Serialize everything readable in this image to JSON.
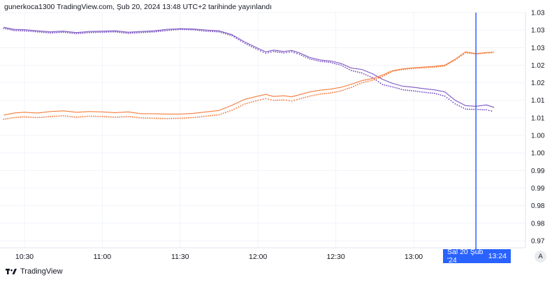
{
  "header": {
    "published_text": "gunerkoca1300 TradingView.com, Şub 20, 2024 13:48 UTC+2 tarihinde yayınlandı"
  },
  "footer": {
    "brand": "TradingView",
    "logo_icon": "tradingview-logo-icon"
  },
  "auto_scale_button": {
    "label": "A"
  },
  "crosshair": {
    "date_label": "Sal 20 Şub '24",
    "time_label": "13:24",
    "time": "13:24",
    "color": "#2962ff"
  },
  "chart_data": {
    "type": "line",
    "title": "",
    "xlabel": "",
    "ylabel": "",
    "x_ticks": [
      "10:30",
      "11:00",
      "11:30",
      "12:00",
      "12:30",
      "13:00"
    ],
    "y_ticks": [
      "1.03",
      "1.03",
      "1.03",
      "1.02",
      "1.02",
      "1.01",
      "1.01",
      "1.00",
      "1.00",
      "0.99",
      "0.99",
      "0.98",
      "0.98",
      "0.97"
    ],
    "y_tick_values": [
      1.035,
      1.03,
      1.025,
      1.02,
      1.015,
      1.01,
      1.005,
      1.0,
      0.995,
      0.99,
      0.985,
      0.98,
      0.975,
      0.97
    ],
    "ylim": [
      0.968,
      1.035
    ],
    "x_range": [
      "10:22",
      "13:31"
    ],
    "grid": true,
    "legend": "none",
    "series": [
      {
        "style": "solid",
        "color": "#7e57c2",
        "points": [
          [
            "10:22",
            1.0308
          ],
          [
            "10:26",
            1.0302
          ],
          [
            "10:30",
            1.0301
          ],
          [
            "10:35",
            1.0298
          ],
          [
            "10:40",
            1.0295
          ],
          [
            "10:45",
            1.0297
          ],
          [
            "10:50",
            1.0293
          ],
          [
            "10:55",
            1.0296
          ],
          [
            "11:00",
            1.0297
          ],
          [
            "11:05",
            1.0298
          ],
          [
            "11:10",
            1.0294
          ],
          [
            "11:15",
            1.0296
          ],
          [
            "11:20",
            1.0298
          ],
          [
            "11:25",
            1.0302
          ],
          [
            "11:30",
            1.0304
          ],
          [
            "11:35",
            1.0303
          ],
          [
            "11:40",
            1.03
          ],
          [
            "11:45",
            1.0298
          ],
          [
            "11:50",
            1.0287
          ],
          [
            "11:55",
            1.0266
          ],
          [
            "12:00",
            1.0248
          ],
          [
            "12:03",
            1.0238
          ],
          [
            "12:06",
            1.0243
          ],
          [
            "12:10",
            1.0239
          ],
          [
            "12:13",
            1.0242
          ],
          [
            "12:16",
            1.0235
          ],
          [
            "12:20",
            1.0222
          ],
          [
            "12:24",
            1.0215
          ],
          [
            "12:28",
            1.0212
          ],
          [
            "12:32",
            1.0205
          ],
          [
            "12:36",
            1.0192
          ],
          [
            "12:40",
            1.0188
          ],
          [
            "12:44",
            1.0176
          ],
          [
            "12:48",
            1.016
          ],
          [
            "12:52",
            1.0148
          ],
          [
            "12:56",
            1.014
          ],
          [
            "13:00",
            1.0137
          ],
          [
            "13:04",
            1.0133
          ],
          [
            "13:08",
            1.013
          ],
          [
            "13:12",
            1.0124
          ],
          [
            "13:16",
            1.01
          ],
          [
            "13:20",
            1.0085
          ],
          [
            "13:24",
            1.0083
          ],
          [
            "13:28",
            1.0087
          ],
          [
            "13:31",
            1.008
          ]
        ]
      },
      {
        "style": "dotted",
        "color": "#7e57c2",
        "points": [
          [
            "10:22",
            1.0305
          ],
          [
            "10:26",
            1.0299
          ],
          [
            "10:30",
            1.0298
          ],
          [
            "10:35",
            1.0295
          ],
          [
            "10:40",
            1.0292
          ],
          [
            "10:45",
            1.0294
          ],
          [
            "10:50",
            1.029
          ],
          [
            "10:55",
            1.0293
          ],
          [
            "11:00",
            1.0294
          ],
          [
            "11:05",
            1.0295
          ],
          [
            "11:10",
            1.0291
          ],
          [
            "11:15",
            1.0293
          ],
          [
            "11:20",
            1.0295
          ],
          [
            "11:25",
            1.0299
          ],
          [
            "11:30",
            1.0302
          ],
          [
            "11:35",
            1.0301
          ],
          [
            "11:40",
            1.0297
          ],
          [
            "11:45",
            1.0295
          ],
          [
            "11:50",
            1.0284
          ],
          [
            "11:55",
            1.0262
          ],
          [
            "12:00",
            1.0244
          ],
          [
            "12:03",
            1.0234
          ],
          [
            "12:06",
            1.0239
          ],
          [
            "12:10",
            1.0235
          ],
          [
            "12:13",
            1.0238
          ],
          [
            "12:16",
            1.0231
          ],
          [
            "12:20",
            1.0218
          ],
          [
            "12:24",
            1.0211
          ],
          [
            "12:28",
            1.0208
          ],
          [
            "12:32",
            1.02
          ],
          [
            "12:36",
            1.0185
          ],
          [
            "12:40",
            1.0178
          ],
          [
            "12:44",
            1.0165
          ],
          [
            "12:48",
            1.0145
          ],
          [
            "12:52",
            1.0138
          ],
          [
            "12:56",
            1.013
          ],
          [
            "13:00",
            1.0127
          ],
          [
            "13:04",
            1.0123
          ],
          [
            "13:08",
            1.012
          ],
          [
            "13:12",
            1.0112
          ],
          [
            "13:16",
            1.009
          ],
          [
            "13:20",
            1.0075
          ],
          [
            "13:24",
            1.0074
          ],
          [
            "13:28",
            1.0073
          ],
          [
            "13:31",
            1.0068
          ]
        ]
      },
      {
        "style": "solid",
        "color": "#f57c3c",
        "points": [
          [
            "10:22",
            1.0058
          ],
          [
            "10:26",
            1.0064
          ],
          [
            "10:30",
            1.0066
          ],
          [
            "10:35",
            1.0064
          ],
          [
            "10:40",
            1.0068
          ],
          [
            "10:45",
            1.007
          ],
          [
            "10:50",
            1.0066
          ],
          [
            "10:55",
            1.0068
          ],
          [
            "11:00",
            1.0067
          ],
          [
            "11:05",
            1.0065
          ],
          [
            "11:10",
            1.0067
          ],
          [
            "11:15",
            1.0062
          ],
          [
            "11:20",
            1.0062
          ],
          [
            "11:25",
            1.0061
          ],
          [
            "11:30",
            1.0061
          ],
          [
            "11:35",
            1.0063
          ],
          [
            "11:40",
            1.0067
          ],
          [
            "11:45",
            1.0071
          ],
          [
            "11:50",
            1.0086
          ],
          [
            "11:55",
            1.0103
          ],
          [
            "12:00",
            1.0112
          ],
          [
            "12:03",
            1.0117
          ],
          [
            "12:06",
            1.0111
          ],
          [
            "12:10",
            1.0113
          ],
          [
            "12:13",
            1.011
          ],
          [
            "12:16",
            1.0116
          ],
          [
            "12:20",
            1.0124
          ],
          [
            "12:24",
            1.0129
          ],
          [
            "12:28",
            1.0132
          ],
          [
            "12:32",
            1.0137
          ],
          [
            "12:36",
            1.0146
          ],
          [
            "12:40",
            1.0156
          ],
          [
            "12:44",
            1.0162
          ],
          [
            "12:48",
            1.0172
          ],
          [
            "12:52",
            1.0185
          ],
          [
            "12:56",
            1.019
          ],
          [
            "13:00",
            1.0193
          ],
          [
            "13:04",
            1.0195
          ],
          [
            "13:08",
            1.0197
          ],
          [
            "13:12",
            1.02
          ],
          [
            "13:16",
            1.0217
          ],
          [
            "13:20",
            1.0238
          ],
          [
            "13:24",
            1.0233
          ],
          [
            "13:28",
            1.0236
          ],
          [
            "13:31",
            1.0237
          ]
        ]
      },
      {
        "style": "dotted",
        "color": "#f57c3c",
        "points": [
          [
            "10:22",
            1.0046
          ],
          [
            "10:26",
            1.0051
          ],
          [
            "10:30",
            1.0053
          ],
          [
            "10:35",
            1.0051
          ],
          [
            "10:40",
            1.0054
          ],
          [
            "10:45",
            1.0056
          ],
          [
            "10:50",
            1.0052
          ],
          [
            "10:55",
            1.0055
          ],
          [
            "11:00",
            1.0054
          ],
          [
            "11:05",
            1.0052
          ],
          [
            "11:10",
            1.0054
          ],
          [
            "11:15",
            1.005
          ],
          [
            "11:20",
            1.0049
          ],
          [
            "11:25",
            1.0048
          ],
          [
            "11:30",
            1.0049
          ],
          [
            "11:35",
            1.0051
          ],
          [
            "11:40",
            1.0055
          ],
          [
            "11:45",
            1.0059
          ],
          [
            "11:50",
            1.0072
          ],
          [
            "11:55",
            1.009
          ],
          [
            "12:00",
            1.01
          ],
          [
            "12:03",
            1.0105
          ],
          [
            "12:06",
            1.01
          ],
          [
            "12:10",
            1.0101
          ],
          [
            "12:13",
            1.0098
          ],
          [
            "12:16",
            1.0104
          ],
          [
            "12:20",
            1.0112
          ],
          [
            "12:24",
            1.0118
          ],
          [
            "12:28",
            1.0121
          ],
          [
            "12:32",
            1.0127
          ],
          [
            "12:36",
            1.0137
          ],
          [
            "12:40",
            1.015
          ],
          [
            "12:44",
            1.0157
          ],
          [
            "12:48",
            1.0168
          ],
          [
            "12:52",
            1.0183
          ],
          [
            "12:56",
            1.0188
          ],
          [
            "13:00",
            1.0191
          ],
          [
            "13:04",
            1.0193
          ],
          [
            "13:08",
            1.0195
          ],
          [
            "13:12",
            1.0198
          ],
          [
            "13:16",
            1.0215
          ],
          [
            "13:20",
            1.0236
          ],
          [
            "13:24",
            1.0232
          ],
          [
            "13:28",
            1.0235
          ],
          [
            "13:31",
            1.0236
          ]
        ]
      }
    ]
  }
}
